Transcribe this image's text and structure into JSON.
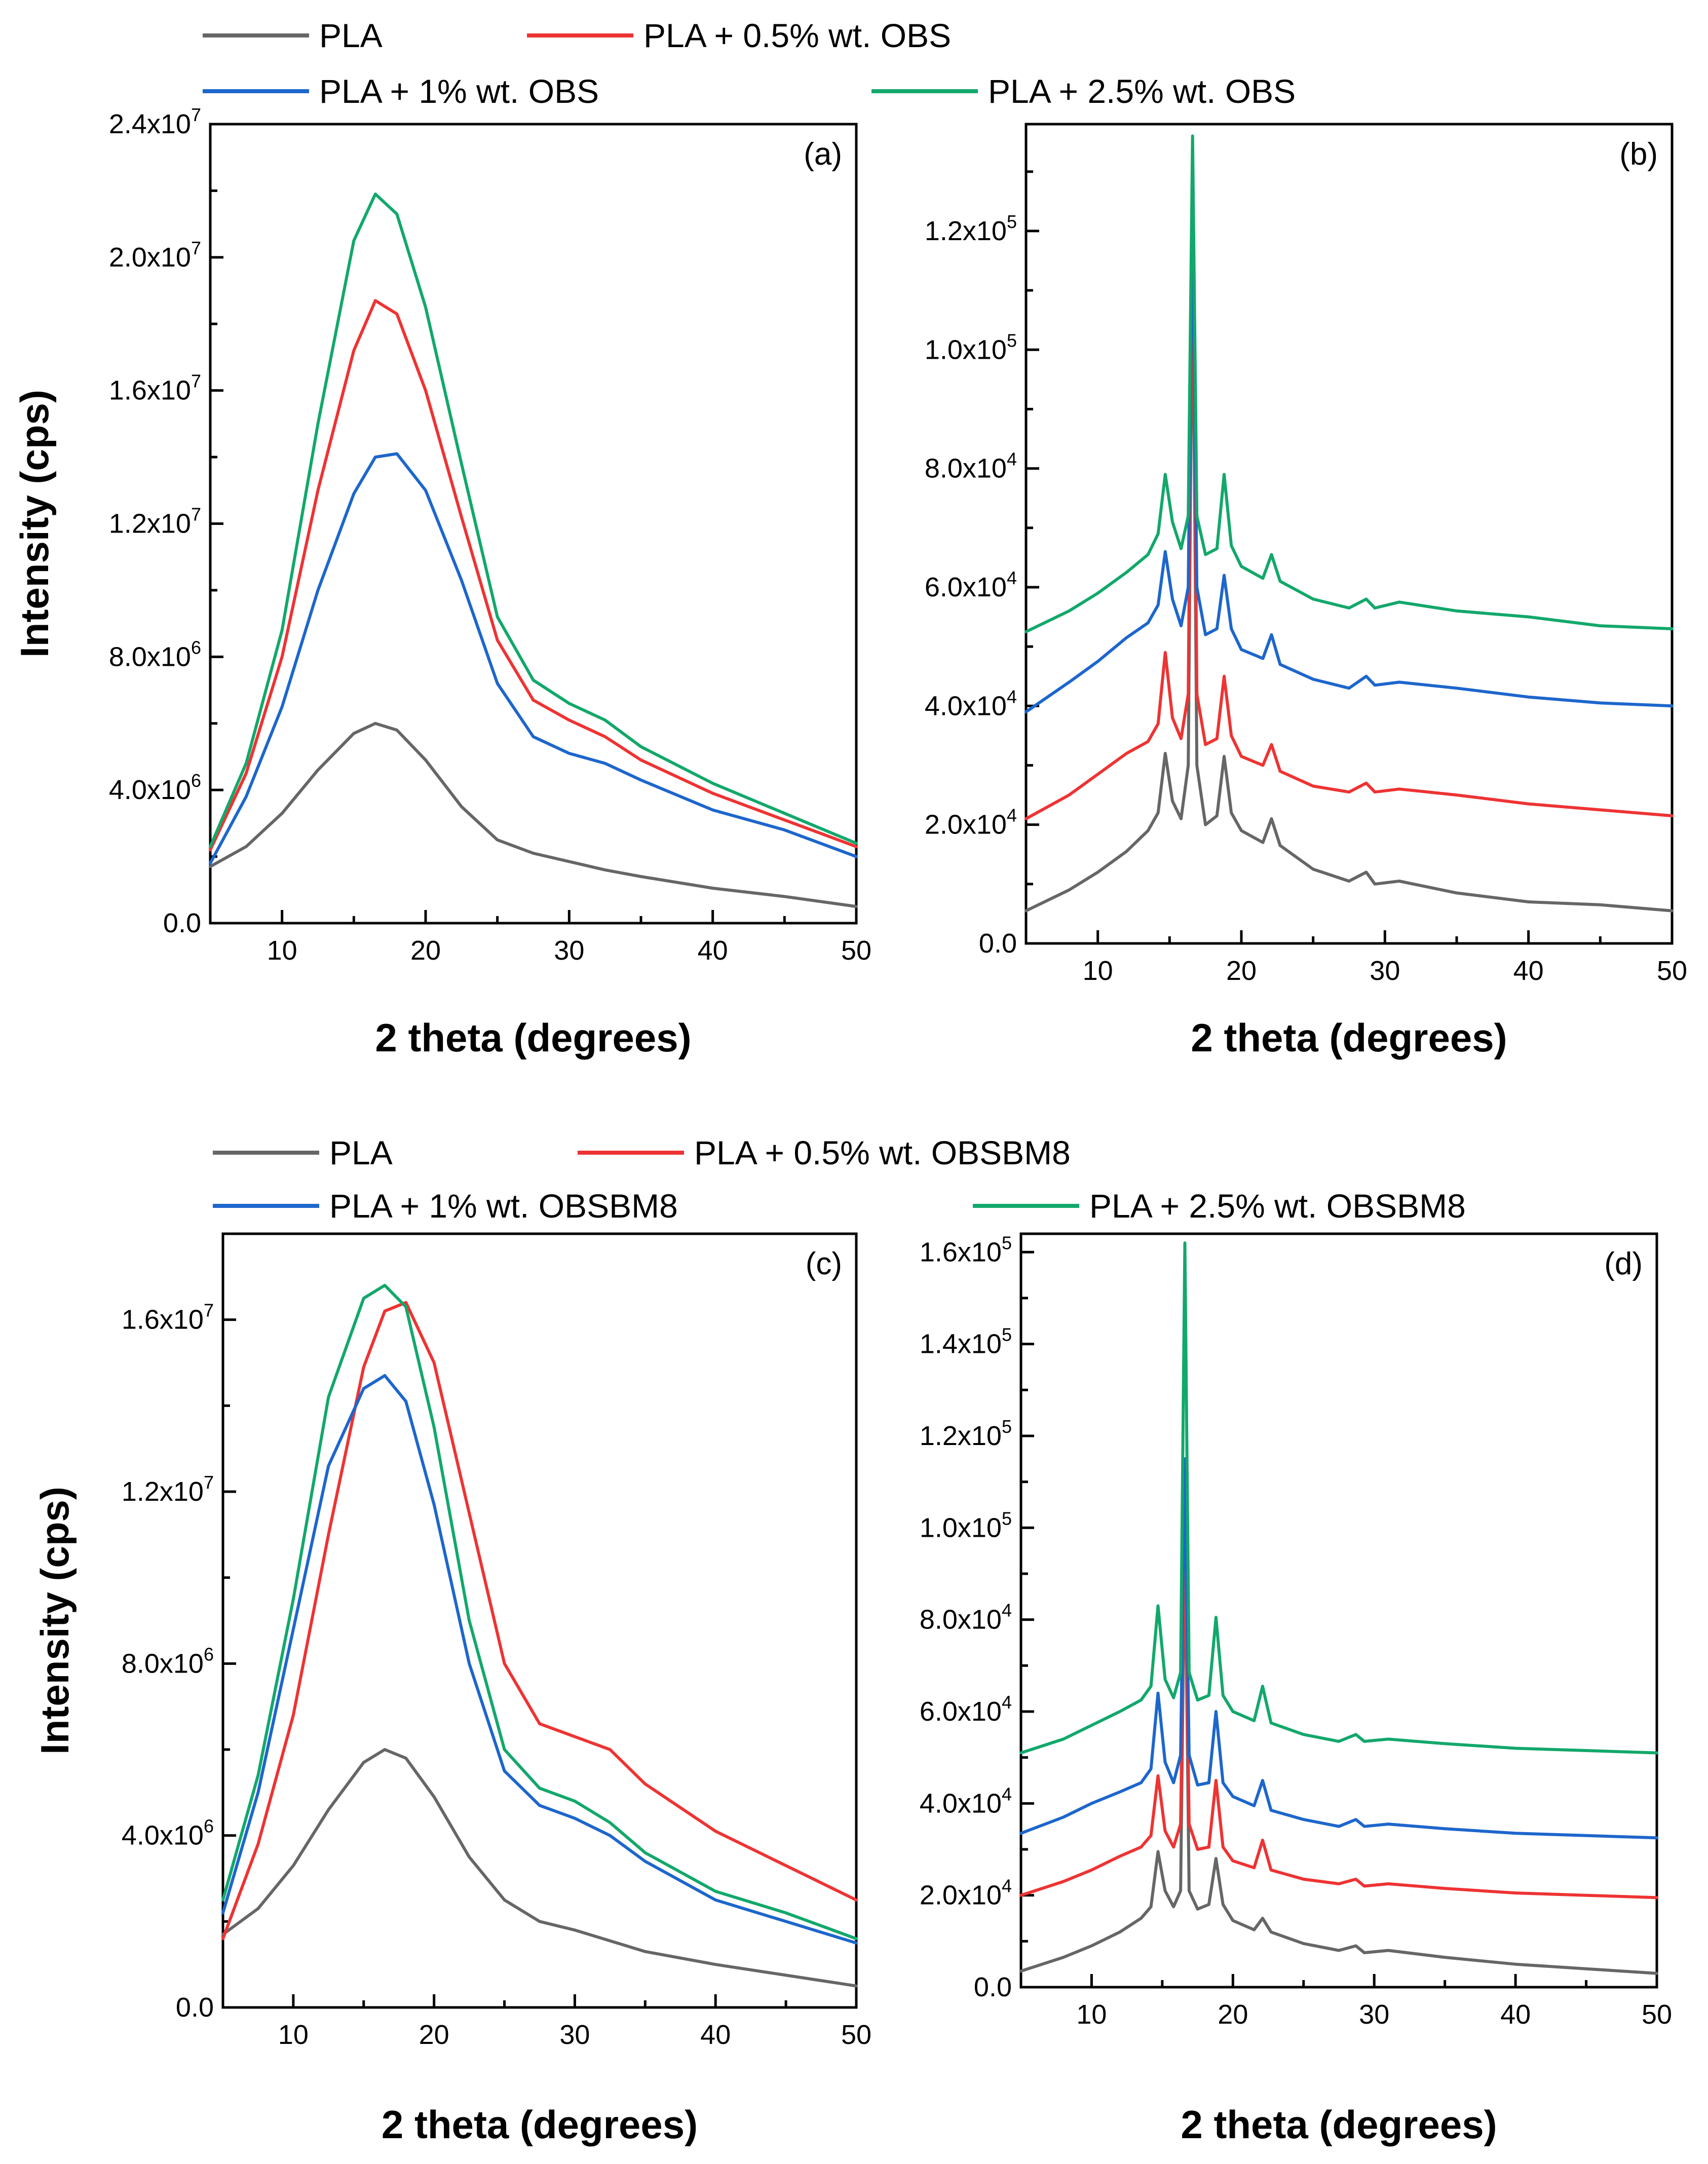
{
  "colors": {
    "PLA": "#666666",
    "PLA05": "#ee3333",
    "PLA1": "#1d66cc",
    "PLA25": "#12a86b"
  },
  "legends": [
    {
      "items": [
        {
          "key": "PLA",
          "label": "PLA"
        },
        {
          "key": "PLA05",
          "label": "PLA + 0.5% wt. OBS"
        },
        {
          "key": "PLA1",
          "label": "PLA + 1% wt. OBS"
        },
        {
          "key": "PLA25",
          "label": "PLA + 2.5% wt. OBS"
        }
      ]
    },
    {
      "items": [
        {
          "key": "PLA",
          "label": "PLA"
        },
        {
          "key": "PLA05",
          "label": "PLA + 0.5% wt. OBSBM8"
        },
        {
          "key": "PLA1",
          "label": "PLA + 1% wt. OBSBM8"
        },
        {
          "key": "PLA25",
          "label": "PLA + 2.5% wt. OBSBM8"
        }
      ]
    }
  ],
  "chart_data": [
    {
      "panel": "(a)",
      "type": "line",
      "xlabel": "2 theta (degrees)",
      "ylabel": "Intensity (cps)",
      "xlim": [
        5,
        50
      ],
      "ylim": [
        0,
        24000000
      ],
      "xticks": [
        10,
        20,
        30,
        40,
        50
      ],
      "yticks": [
        {
          "mant": "0.0",
          "exp": ""
        },
        {
          "mant": "4.0x10",
          "exp": "6"
        },
        {
          "mant": "8.0x10",
          "exp": "6"
        },
        {
          "mant": "1.2x10",
          "exp": "7"
        },
        {
          "mant": "1.6x10",
          "exp": "7"
        },
        {
          "mant": "2.0x10",
          "exp": "7"
        },
        {
          "mant": "2.4x10",
          "exp": "7"
        }
      ],
      "ytick_values": [
        0,
        4000000,
        8000000,
        12000000,
        16000000,
        20000000,
        24000000
      ],
      "x": [
        5,
        7.5,
        10,
        12.5,
        15,
        16.5,
        18,
        20,
        22.5,
        25,
        27.5,
        30,
        32.5,
        35,
        40,
        45,
        50
      ],
      "series": [
        {
          "key": "PLA",
          "name": "PLA",
          "values": [
            1700000,
            2300000,
            3300000,
            4600000,
            5700000,
            6000000,
            5800000,
            4900000,
            3500000,
            2500000,
            2100000,
            1850000,
            1600000,
            1400000,
            1050000,
            800000,
            500000
          ]
        },
        {
          "key": "PLA05",
          "name": "PLA + 0.5% wt. OBS",
          "values": [
            2200000,
            4500000,
            8000000,
            13000000,
            17200000,
            18700000,
            18300000,
            16000000,
            12200000,
            8500000,
            6700000,
            6100000,
            5600000,
            4900000,
            3900000,
            3100000,
            2300000
          ]
        },
        {
          "key": "PLA1",
          "name": "PLA + 1% wt. OBS",
          "values": [
            1800000,
            3800000,
            6500000,
            10000000,
            12900000,
            14000000,
            14100000,
            13000000,
            10300000,
            7200000,
            5600000,
            5100000,
            4800000,
            4300000,
            3400000,
            2800000,
            2000000
          ]
        },
        {
          "key": "PLA25",
          "name": "PLA + 2.5% wt. OBS",
          "values": [
            2300000,
            4800000,
            8800000,
            15000000,
            20500000,
            21900000,
            21300000,
            18500000,
            13800000,
            9200000,
            7300000,
            6600000,
            6100000,
            5300000,
            4200000,
            3300000,
            2400000
          ]
        }
      ]
    },
    {
      "panel": "(b)",
      "type": "line",
      "xlabel": "2 theta (degrees)",
      "ylabel": "",
      "xlim": [
        5,
        50
      ],
      "ylim": [
        0,
        138000
      ],
      "xticks": [
        10,
        20,
        30,
        40,
        50
      ],
      "yticks": [
        {
          "mant": "0.0",
          "exp": ""
        },
        {
          "mant": "2.0x10",
          "exp": "4"
        },
        {
          "mant": "4.0x10",
          "exp": "4"
        },
        {
          "mant": "6.0x10",
          "exp": "4"
        },
        {
          "mant": "8.0x10",
          "exp": "4"
        },
        {
          "mant": "1.0x10",
          "exp": "5"
        },
        {
          "mant": "1.2x10",
          "exp": "5"
        }
      ],
      "ytick_values": [
        0,
        20000,
        40000,
        60000,
        80000,
        100000,
        120000
      ],
      "x": [
        5,
        8,
        10,
        12,
        13.5,
        14.2,
        14.7,
        15.2,
        15.8,
        16.3,
        16.6,
        16.9,
        17.5,
        18.3,
        18.8,
        19.3,
        20,
        21.5,
        22.1,
        22.7,
        25,
        27.5,
        28.7,
        29.3,
        31,
        35,
        40,
        45,
        50
      ],
      "series": [
        {
          "key": "PLA",
          "name": "PLA",
          "values": [
            5500,
            9000,
            12000,
            15500,
            19000,
            22000,
            32000,
            24000,
            21000,
            30000,
            118000,
            30000,
            20000,
            21500,
            31500,
            22000,
            19000,
            17000,
            21000,
            16500,
            12500,
            10500,
            12000,
            10000,
            10500,
            8500,
            7000,
            6500,
            5500
          ]
        },
        {
          "key": "PLA05",
          "name": "PLA + 0.5% wt. OBS",
          "values": [
            21000,
            25000,
            28500,
            32000,
            34000,
            37000,
            49000,
            38000,
            34500,
            42000,
            127000,
            42000,
            33500,
            34500,
            45000,
            35000,
            31500,
            30000,
            33500,
            29000,
            26500,
            25500,
            27000,
            25500,
            26000,
            25000,
            23500,
            22500,
            21500
          ]
        },
        {
          "key": "PLA1",
          "name": "PLA + 1% wt. OBS",
          "values": [
            39000,
            44000,
            47500,
            51500,
            54000,
            57000,
            66000,
            58000,
            53500,
            60000,
            126000,
            60000,
            52000,
            53000,
            62000,
            53000,
            49500,
            48000,
            52000,
            47000,
            44500,
            43000,
            45000,
            43500,
            44000,
            43000,
            41500,
            40500,
            40000
          ]
        },
        {
          "key": "PLA25",
          "name": "PLA + 2.5% wt. OBS",
          "values": [
            52500,
            56000,
            59000,
            62500,
            65500,
            69000,
            79000,
            71000,
            66500,
            72000,
            136000,
            72000,
            65500,
            66500,
            79000,
            67000,
            63500,
            61500,
            65500,
            61000,
            58000,
            56500,
            58000,
            56500,
            57500,
            56000,
            55000,
            53500,
            53000
          ]
        }
      ]
    },
    {
      "panel": "(c)",
      "type": "line",
      "xlabel": "2 theta (degrees)",
      "ylabel": "Intensity (cps)",
      "xlim": [
        5,
        50
      ],
      "ylim": [
        0,
        18000000
      ],
      "xticks": [
        10,
        20,
        30,
        40,
        50
      ],
      "yticks": [
        {
          "mant": "0.0",
          "exp": ""
        },
        {
          "mant": "4.0x10",
          "exp": "6"
        },
        {
          "mant": "8.0x10",
          "exp": "6"
        },
        {
          "mant": "1.2x10",
          "exp": "7"
        },
        {
          "mant": "1.6x10",
          "exp": "7"
        }
      ],
      "ytick_values": [
        0,
        4000000,
        8000000,
        12000000,
        16000000
      ],
      "x": [
        5,
        7.5,
        10,
        12.5,
        15,
        16.5,
        18,
        20,
        22.5,
        25,
        27.5,
        30,
        32.5,
        35,
        40,
        45,
        50
      ],
      "series": [
        {
          "key": "PLA",
          "name": "PLA",
          "values": [
            1700000,
            2300000,
            3300000,
            4600000,
            5700000,
            6000000,
            5800000,
            4900000,
            3500000,
            2500000,
            2000000,
            1800000,
            1550000,
            1300000,
            1000000,
            750000,
            500000
          ]
        },
        {
          "key": "PLA05",
          "name": "PLA + 0.5% wt. OBSBM8",
          "values": [
            1600000,
            3800000,
            6800000,
            11000000,
            14900000,
            16200000,
            16400000,
            15000000,
            11500000,
            8000000,
            6600000,
            6300000,
            6000000,
            5200000,
            4100000,
            3300000,
            2500000
          ]
        },
        {
          "key": "PLA1",
          "name": "PLA + 1% wt. OBSBM8",
          "values": [
            2200000,
            5000000,
            8800000,
            12600000,
            14400000,
            14700000,
            14100000,
            11700000,
            8000000,
            5500000,
            4700000,
            4400000,
            4000000,
            3400000,
            2500000,
            2000000,
            1500000
          ]
        },
        {
          "key": "PLA25",
          "name": "PLA + 2.5% wt. OBSBM8",
          "values": [
            2500000,
            5400000,
            9500000,
            14200000,
            16500000,
            16800000,
            16300000,
            13500000,
            9000000,
            6000000,
            5100000,
            4800000,
            4300000,
            3600000,
            2700000,
            2200000,
            1600000
          ]
        }
      ]
    },
    {
      "panel": "(d)",
      "type": "line",
      "xlabel": "2 theta (degrees)",
      "ylabel": "",
      "xlim": [
        5,
        50
      ],
      "ylim": [
        0,
        164000
      ],
      "xticks": [
        10,
        20,
        30,
        40,
        50
      ],
      "yticks": [
        {
          "mant": "0.0",
          "exp": ""
        },
        {
          "mant": "2.0x10",
          "exp": "4"
        },
        {
          "mant": "4.0x10",
          "exp": "4"
        },
        {
          "mant": "6.0x10",
          "exp": "4"
        },
        {
          "mant": "8.0x10",
          "exp": "4"
        },
        {
          "mant": "1.0x10",
          "exp": "5"
        },
        {
          "mant": "1.2x10",
          "exp": "5"
        },
        {
          "mant": "1.4x10",
          "exp": "5"
        },
        {
          "mant": "1.6x10",
          "exp": "5"
        }
      ],
      "ytick_values": [
        0,
        20000,
        40000,
        60000,
        80000,
        100000,
        120000,
        140000,
        160000
      ],
      "x": [
        5,
        8,
        10,
        12,
        13.5,
        14.2,
        14.7,
        15.2,
        15.8,
        16.3,
        16.6,
        16.9,
        17.5,
        18.3,
        18.8,
        19.3,
        20,
        21.5,
        22.1,
        22.7,
        25,
        27.5,
        28.7,
        29.3,
        31,
        35,
        40,
        45,
        50
      ],
      "series": [
        {
          "key": "PLA",
          "name": "PLA",
          "values": [
            3500,
            6500,
            9000,
            12000,
            15000,
            17500,
            29500,
            21000,
            17500,
            21000,
            100000,
            21000,
            17000,
            18000,
            28000,
            18000,
            14500,
            12500,
            15000,
            12000,
            9500,
            8000,
            9000,
            7500,
            8000,
            6500,
            5000,
            4000,
            3000
          ]
        },
        {
          "key": "PLA05",
          "name": "PLA + 0.5% wt. OBSBM8",
          "values": [
            20000,
            23000,
            25500,
            28500,
            30500,
            33000,
            46000,
            34000,
            30500,
            35500,
            102000,
            35500,
            30000,
            30500,
            45000,
            30500,
            27500,
            26000,
            32000,
            25500,
            23500,
            22500,
            23500,
            22000,
            22500,
            21500,
            20500,
            20000,
            19500
          ]
        },
        {
          "key": "PLA1",
          "name": "PLA + 1% wt. OBSBM8",
          "values": [
            33500,
            37000,
            40000,
            42500,
            44500,
            47500,
            64000,
            49000,
            44500,
            50500,
            115000,
            50500,
            44000,
            44500,
            60000,
            44500,
            41500,
            39500,
            45000,
            38500,
            36500,
            35000,
            36500,
            35000,
            35500,
            34500,
            33500,
            33000,
            32500
          ]
        },
        {
          "key": "PLA25",
          "name": "PLA + 2.5% wt. OBSBM8",
          "values": [
            51000,
            54000,
            57000,
            60000,
            62500,
            65500,
            83000,
            67000,
            63000,
            68500,
            162000,
            68500,
            62500,
            63500,
            80500,
            63500,
            60000,
            58000,
            65500,
            57500,
            55000,
            53500,
            55000,
            53500,
            54000,
            53000,
            52000,
            51500,
            51000
          ]
        }
      ]
    }
  ]
}
